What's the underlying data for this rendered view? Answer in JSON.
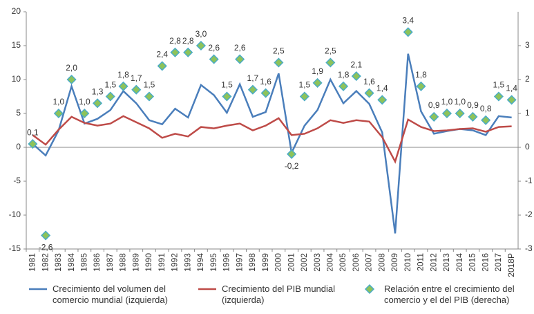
{
  "chart_data": {
    "type": "line",
    "categories": [
      "1981",
      "1982",
      "1983",
      "1984",
      "1985",
      "1986",
      "1987",
      "1988",
      "1989",
      "1990",
      "1991",
      "1992",
      "1993",
      "1994",
      "1995",
      "1996",
      "1997",
      "1998",
      "1999",
      "2000",
      "2001",
      "2002",
      "2003",
      "2004",
      "2005",
      "2006",
      "2007",
      "2008",
      "2009",
      "2010",
      "2011",
      "2012",
      "2013",
      "2014",
      "2015",
      "2016",
      "2017",
      "2018P"
    ],
    "ylim": [
      -15,
      20
    ],
    "yticks": [
      -15,
      -10,
      -5,
      0,
      5,
      10,
      15,
      20
    ],
    "y2lim": [
      -3,
      4
    ],
    "y2ticks": [
      -3,
      -2,
      -1,
      0,
      1,
      2,
      3
    ],
    "legend": "bottom",
    "series": [
      {
        "name": "Crecimiento del volumen del comercio mundial (izquierda)",
        "type": "line",
        "color": "#4a7ebb",
        "values": [
          0.5,
          -1.2,
          2.5,
          9.0,
          3.5,
          4.2,
          5.5,
          8.3,
          6.5,
          4.0,
          3.4,
          5.7,
          4.4,
          9.2,
          7.7,
          5.1,
          9.3,
          4.5,
          5.2,
          10.9,
          -0.8,
          3.2,
          5.5,
          10.0,
          6.5,
          8.3,
          6.4,
          2.2,
          -12.7,
          13.8,
          5.3,
          2.0,
          2.4,
          2.7,
          2.5,
          1.8,
          4.6,
          4.4
        ]
      },
      {
        "name": "Crecimiento del PIB mundial (izquierda)",
        "type": "line",
        "color": "#be4b48",
        "values": [
          1.8,
          0.4,
          2.6,
          4.5,
          3.6,
          3.2,
          3.5,
          4.6,
          3.7,
          2.8,
          1.4,
          2.0,
          1.6,
          3.0,
          2.8,
          3.2,
          3.5,
          2.5,
          3.2,
          4.3,
          1.8,
          2.0,
          2.8,
          4.0,
          3.6,
          4.0,
          3.8,
          1.5,
          -2.1,
          4.1,
          3.0,
          2.4,
          2.5,
          2.7,
          2.8,
          2.3,
          3.0,
          3.1
        ]
      },
      {
        "name": "Relación entre el crecimiento del comercio y el del PIB (derecha)",
        "type": "scatter",
        "axis": "y2",
        "color": "#8dc35a",
        "edge": "#4bacc6",
        "values": [
          0.1,
          -2.6,
          1.0,
          2.0,
          1.0,
          1.3,
          1.5,
          1.8,
          1.7,
          1.5,
          2.4,
          2.8,
          2.8,
          3.0,
          2.6,
          1.5,
          2.6,
          1.7,
          1.6,
          2.5,
          -0.2,
          1.5,
          1.9,
          2.5,
          1.8,
          2.1,
          1.6,
          1.4,
          null,
          3.4,
          1.8,
          0.9,
          1.0,
          1.0,
          0.9,
          0.8,
          1.5,
          1.4
        ],
        "value_labels": [
          "0,1",
          "-2,6",
          "1,0",
          "2,0",
          "1,0",
          "1,3",
          "1,5",
          "1,8",
          "1,7",
          "1,5",
          "2,4",
          "2,8",
          "2,8",
          "3,0",
          "2,6",
          "1,5",
          "2,6",
          "1,7",
          "1,6",
          "2,5",
          "-0,2",
          "1,5",
          "1,9",
          "2,5",
          "1,8",
          "2,1",
          "1,6",
          "1,4",
          null,
          "3,4",
          "1,8",
          "0,9",
          "1,0",
          "1,0",
          "0,9",
          "0,8",
          "1,5",
          "1,4"
        ]
      }
    ]
  }
}
